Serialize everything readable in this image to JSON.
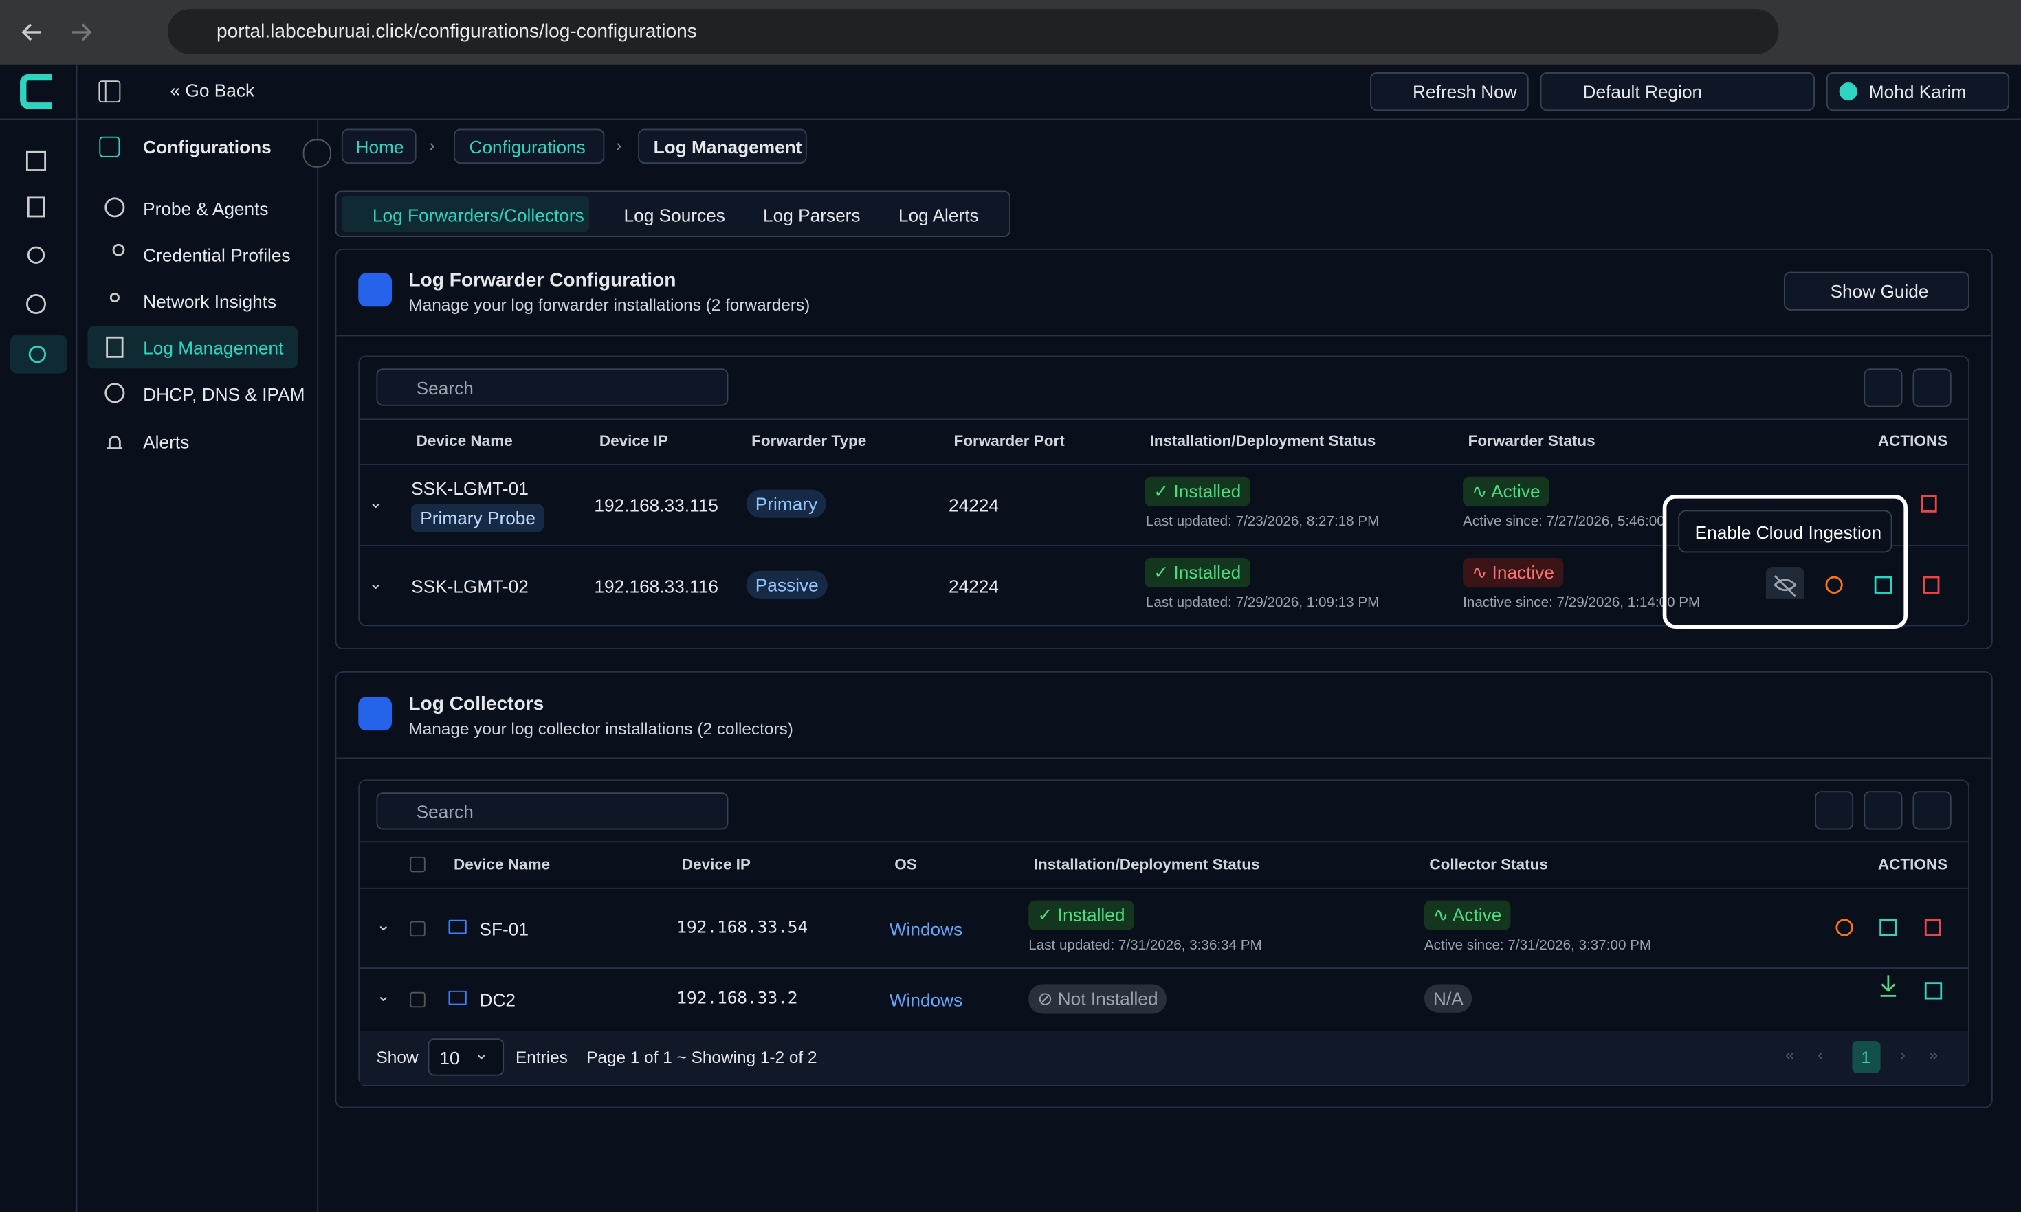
{
  "browser": {
    "url": "portal.labceburuai.click/configurations/log-configurations"
  },
  "topbar": {
    "go_back": "Go Back",
    "refresh": "Refresh Now",
    "region": "Default Region",
    "user": "Mohd Karim"
  },
  "sidebar": {
    "title": "Configurations",
    "items": [
      "Probe & Agents",
      "Credential Profiles",
      "Network Insights",
      "Log Management",
      "DHCP, DNS & IPAM",
      "Alerts"
    ]
  },
  "breadcrumb": [
    "Home",
    "Configurations",
    "Log Management"
  ],
  "tabs": [
    "Log Forwarders/Collectors",
    "Log Sources",
    "Log Parsers",
    "Log Alerts"
  ],
  "forwarders": {
    "title": "Log Forwarder Configuration",
    "subtitle": "Manage your log forwarder installations (2 forwarders)",
    "guide": "Show Guide",
    "search": "Search",
    "columns": [
      "Device Name",
      "Device IP",
      "Forwarder Type",
      "Forwarder Port",
      "Installation/Deployment Status",
      "Forwarder Status",
      "ACTIONS"
    ],
    "rows": [
      {
        "name": "SSK-LGMT-01",
        "badge": "Primary Probe",
        "ip": "192.168.33.115",
        "type": "Primary",
        "port": "24224",
        "install": "Installed",
        "install_time": "Last updated: 7/23/2026, 8:27:18 PM",
        "status": "Active",
        "status_time": "Active since: 7/27/2026, 5:46:00"
      },
      {
        "name": "SSK-LGMT-02",
        "ip": "192.168.33.116",
        "type": "Passive",
        "port": "24224",
        "install": "Installed",
        "install_time": "Last updated: 7/29/2026, 1:09:13 PM",
        "status": "Inactive",
        "status_time": "Inactive since: 7/29/2026, 1:14:00 PM"
      }
    ],
    "tooltip": "Enable Cloud Ingestion"
  },
  "collectors": {
    "title": "Log Collectors",
    "subtitle": "Manage your log collector installations (2 collectors)",
    "search": "Search",
    "columns": [
      "Device Name",
      "Device IP",
      "OS",
      "Installation/Deployment Status",
      "Collector Status",
      "ACTIONS"
    ],
    "rows": [
      {
        "name": "SF-01",
        "ip": "192.168.33.54",
        "os": "Windows",
        "install": "Installed",
        "install_time": "Last updated: 7/31/2026, 3:36:34 PM",
        "status": "Active",
        "status_time": "Active since: 7/31/2026, 3:37:00 PM"
      },
      {
        "name": "DC2",
        "ip": "192.168.33.2",
        "os": "Windows",
        "install": "Not Installed",
        "status": "N/A"
      }
    ],
    "footer": {
      "show": "Show",
      "page_size": "10",
      "entries": "Entries",
      "page_info": "Page 1 of 1 ~ Showing 1-2 of 2",
      "page": "1"
    }
  }
}
